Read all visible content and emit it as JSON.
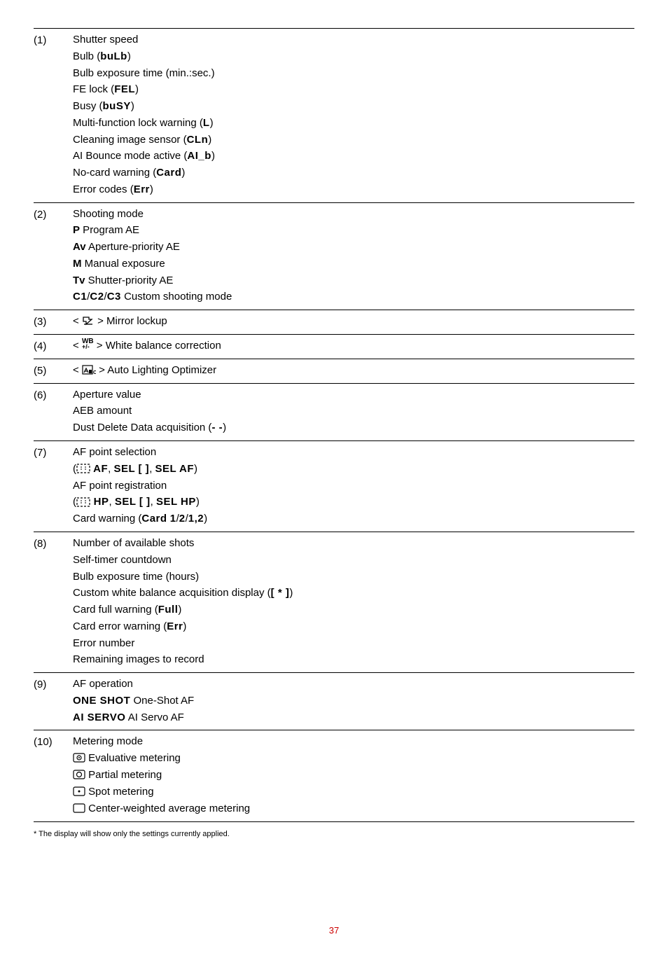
{
  "rows": [
    {
      "num": "(1)",
      "lines": [
        {
          "parts": [
            {
              "t": "Shutter speed"
            }
          ]
        },
        {
          "parts": [
            {
              "t": "Bulb ("
            },
            {
              "t": "buLb",
              "cls": "mono"
            },
            {
              "t": ")"
            }
          ]
        },
        {
          "parts": [
            {
              "t": "Bulb exposure time (min.:sec.)"
            }
          ]
        },
        {
          "parts": [
            {
              "t": "FE lock ("
            },
            {
              "t": "FEL",
              "cls": "mono"
            },
            {
              "t": ")"
            }
          ]
        },
        {
          "parts": [
            {
              "t": "Busy ("
            },
            {
              "t": "buSY",
              "cls": "mono"
            },
            {
              "t": ")"
            }
          ]
        },
        {
          "parts": [
            {
              "t": "Multi-function lock warning ("
            },
            {
              "t": "L",
              "cls": "mono"
            },
            {
              "t": ")"
            }
          ]
        },
        {
          "parts": [
            {
              "t": "Cleaning image sensor ("
            },
            {
              "t": "CLn",
              "cls": "mono"
            },
            {
              "t": ")"
            }
          ]
        },
        {
          "parts": [
            {
              "t": "AI Bounce mode active ("
            },
            {
              "t": "AI_b",
              "cls": "mono"
            },
            {
              "t": ")"
            }
          ]
        },
        {
          "parts": [
            {
              "t": "No-card warning ("
            },
            {
              "t": "Card",
              "cls": "mono"
            },
            {
              "t": ")"
            }
          ]
        },
        {
          "parts": [
            {
              "t": "Error codes ("
            },
            {
              "t": "Err",
              "cls": "mono"
            },
            {
              "t": ")"
            }
          ]
        }
      ]
    },
    {
      "num": "(2)",
      "lines": [
        {
          "parts": [
            {
              "t": "Shooting mode"
            }
          ]
        },
        {
          "parts": [
            {
              "t": "P",
              "cls": "b"
            },
            {
              "t": " Program AE"
            }
          ]
        },
        {
          "parts": [
            {
              "t": "Av",
              "cls": "b"
            },
            {
              "t": " Aperture-priority AE"
            }
          ]
        },
        {
          "parts": [
            {
              "t": "M",
              "cls": "b"
            },
            {
              "t": " Manual exposure"
            }
          ]
        },
        {
          "parts": [
            {
              "t": "Tv",
              "cls": "b"
            },
            {
              "t": " Shutter-priority AE"
            }
          ]
        },
        {
          "parts": [
            {
              "t": "C1",
              "cls": "mono"
            },
            {
              "t": "/"
            },
            {
              "t": "C2",
              "cls": "mono"
            },
            {
              "t": "/"
            },
            {
              "t": "C3",
              "cls": "mono"
            },
            {
              "t": " Custom shooting mode"
            }
          ]
        }
      ]
    },
    {
      "num": "(3)",
      "lines": [
        {
          "parts": [
            {
              "t": "< "
            },
            {
              "icon": "mirror"
            },
            {
              "t": " > Mirror lockup"
            }
          ]
        }
      ]
    },
    {
      "num": "(4)",
      "lines": [
        {
          "parts": [
            {
              "t": "< "
            },
            {
              "icon": "wb"
            },
            {
              "t": " > White balance correction"
            }
          ]
        }
      ]
    },
    {
      "num": "(5)",
      "lines": [
        {
          "parts": [
            {
              "t": "< "
            },
            {
              "icon": "alo"
            },
            {
              "t": " > Auto Lighting Optimizer"
            }
          ]
        }
      ]
    },
    {
      "num": "(6)",
      "lines": [
        {
          "parts": [
            {
              "t": "Aperture value"
            }
          ]
        },
        {
          "parts": [
            {
              "t": "AEB amount"
            }
          ]
        },
        {
          "parts": [
            {
              "t": "Dust Delete Data acquisition ("
            },
            {
              "t": "- -",
              "cls": "mono"
            },
            {
              "t": ")"
            }
          ]
        }
      ]
    },
    {
      "num": "(7)",
      "lines": [
        {
          "parts": [
            {
              "t": "AF point selection"
            }
          ]
        },
        {
          "parts": [
            {
              "t": "("
            },
            {
              "icon": "afbox"
            },
            {
              "t": " AF",
              "cls": "mono"
            },
            {
              "t": ", "
            },
            {
              "t": "SEL [ ]",
              "cls": "mono"
            },
            {
              "t": ", "
            },
            {
              "t": "SEL AF",
              "cls": "mono"
            },
            {
              "t": ")"
            }
          ]
        },
        {
          "parts": [
            {
              "t": "AF point registration"
            }
          ]
        },
        {
          "parts": [
            {
              "t": "("
            },
            {
              "icon": "afbox"
            },
            {
              "t": " HP",
              "cls": "mono"
            },
            {
              "t": ", "
            },
            {
              "t": "SEL [ ]",
              "cls": "mono"
            },
            {
              "t": ", "
            },
            {
              "t": "SEL HP",
              "cls": "mono"
            },
            {
              "t": ")"
            }
          ]
        },
        {
          "parts": [
            {
              "t": "Card warning ("
            },
            {
              "t": "Card",
              "cls": "mono"
            },
            {
              "t": " "
            },
            {
              "t": "1",
              "cls": "mono"
            },
            {
              "t": "/"
            },
            {
              "t": "2",
              "cls": "mono"
            },
            {
              "t": "/"
            },
            {
              "t": "1,2",
              "cls": "mono"
            },
            {
              "t": ")"
            }
          ]
        }
      ]
    },
    {
      "num": "(8)",
      "lines": [
        {
          "parts": [
            {
              "t": "Number of available shots"
            }
          ]
        },
        {
          "parts": [
            {
              "t": "Self-timer countdown"
            }
          ]
        },
        {
          "parts": [
            {
              "t": "Bulb exposure time (hours)"
            }
          ]
        },
        {
          "parts": [
            {
              "t": "Custom white balance acquisition display ("
            },
            {
              "t": "[ * ]",
              "cls": "mono"
            },
            {
              "t": ")"
            }
          ]
        },
        {
          "parts": [
            {
              "t": "Card full warning ("
            },
            {
              "t": "Full",
              "cls": "mono"
            },
            {
              "t": ")"
            }
          ]
        },
        {
          "parts": [
            {
              "t": "Card error warning ("
            },
            {
              "t": "Err",
              "cls": "mono"
            },
            {
              "t": ")"
            }
          ]
        },
        {
          "parts": [
            {
              "t": "Error number"
            }
          ]
        },
        {
          "parts": [
            {
              "t": "Remaining images to record"
            }
          ]
        }
      ]
    },
    {
      "num": "(9)",
      "lines": [
        {
          "parts": [
            {
              "t": "AF operation"
            }
          ]
        },
        {
          "parts": [
            {
              "t": "ONE SHOT",
              "cls": "mono"
            },
            {
              "t": " One-Shot AF"
            }
          ]
        },
        {
          "parts": [
            {
              "t": "AI SERVO",
              "cls": "mono"
            },
            {
              "t": " AI Servo AF"
            }
          ]
        }
      ]
    },
    {
      "num": "(10)",
      "lines": [
        {
          "parts": [
            {
              "t": "Metering mode"
            }
          ]
        },
        {
          "parts": [
            {
              "icon": "eval"
            },
            {
              "t": " Evaluative metering"
            }
          ]
        },
        {
          "parts": [
            {
              "icon": "partial"
            },
            {
              "t": " Partial metering"
            }
          ]
        },
        {
          "parts": [
            {
              "icon": "spot"
            },
            {
              "t": " Spot metering"
            }
          ]
        },
        {
          "parts": [
            {
              "icon": "center"
            },
            {
              "t": " Center-weighted average metering"
            }
          ]
        }
      ]
    }
  ],
  "footnote": "* The display will show only the settings currently applied.",
  "page": "37",
  "colors": {
    "text": "#000000",
    "rule": "#000000",
    "pagenum": "#cc0000",
    "bg": "#ffffff"
  },
  "icons": {
    "mirror_label": "mirror-lockup-icon",
    "wb_label": "white-balance-icon",
    "alo_label": "auto-lighting-optimizer-icon",
    "afbox_label": "af-point-box-icon",
    "eval_label": "evaluative-metering-icon",
    "partial_label": "partial-metering-icon",
    "spot_label": "spot-metering-icon",
    "center_label": "center-weighted-metering-icon"
  }
}
